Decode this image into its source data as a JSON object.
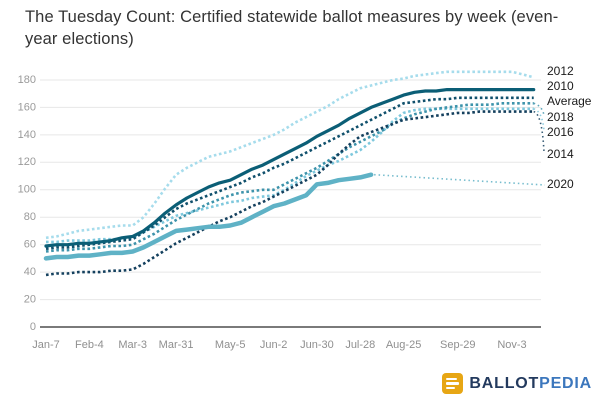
{
  "page": {
    "title": "The Tuesday Count: Certified statewide ballot measures by week (even-year elections)"
  },
  "logo": {
    "ballot": "BALLOT",
    "pedia": "PEDIA",
    "icon_color": "#e7a614"
  },
  "chart_data": {
    "type": "line",
    "title": "The Tuesday Count: Certified statewide ballot measures by week (even-year elections)",
    "xlabel": "",
    "ylabel": "",
    "ylim": [
      0,
      190
    ],
    "y_ticks": [
      0,
      20,
      40,
      60,
      80,
      100,
      120,
      140,
      160,
      180
    ],
    "grid": true,
    "legend_position": "right-of-line-ends",
    "x": [
      "Jan-7",
      "Jan-14",
      "Jan-21",
      "Jan-28",
      "Feb-4",
      "Feb-11",
      "Feb-18",
      "Feb-25",
      "Mar-3",
      "Mar-10",
      "Mar-17",
      "Mar-24",
      "Mar-31",
      "Apr-7",
      "Apr-14",
      "Apr-21",
      "Apr-28",
      "May-5",
      "May-12",
      "May-19",
      "May-26",
      "Jun-2",
      "Jun-9",
      "Jun-16",
      "Jun-23",
      "Jun-30",
      "Jul-7",
      "Jul-14",
      "Jul-21",
      "Jul-28",
      "Aug-4",
      "Aug-11",
      "Aug-18",
      "Aug-25",
      "Sep-1",
      "Sep-8",
      "Sep-15",
      "Sep-22",
      "Sep-29",
      "Oct-6",
      "Oct-13",
      "Oct-20",
      "Oct-27",
      "Nov-3",
      "Nov-10",
      "Nov-17"
    ],
    "x_axis_ticks": [
      "Jan-7",
      "Feb-4",
      "Mar-3",
      "Mar-31",
      "May-5",
      "Jun-2",
      "Jun-30",
      "Jul-28",
      "Aug-25",
      "Sep-29",
      "Nov-3"
    ],
    "series": [
      {
        "name": "2012",
        "color": "#a6dcec",
        "style": "dotted",
        "width": 2.6,
        "label_y": 72,
        "connector": false,
        "values": [
          65,
          66,
          68,
          70,
          71,
          72,
          73,
          74,
          74,
          80,
          90,
          101,
          111,
          116,
          120,
          124,
          126,
          128,
          131,
          134,
          137,
          140,
          144,
          149,
          153,
          157,
          161,
          166,
          170,
          174,
          176,
          178,
          180,
          181,
          183,
          184,
          185,
          186,
          186,
          186,
          186,
          186,
          186,
          186,
          184,
          182
        ]
      },
      {
        "name": "2016",
        "color": "#7ec8dd",
        "style": "dotted",
        "width": 2.6,
        "label_y": 133,
        "connector": true,
        "values": [
          62,
          62,
          63,
          63,
          63,
          64,
          64,
          64,
          65,
          69,
          73,
          77,
          81,
          83,
          85,
          87,
          89,
          91,
          92,
          94,
          95,
          96,
          100,
          105,
          110,
          114,
          118,
          121,
          125,
          129,
          135,
          142,
          150,
          156,
          158,
          159,
          159,
          159,
          159,
          159,
          159,
          159,
          159,
          159,
          159,
          159
        ]
      },
      {
        "name": "2018",
        "color": "#3d93ab",
        "style": "dotted",
        "width": 2.6,
        "label_y": 118,
        "connector": true,
        "values": [
          55,
          56,
          56,
          57,
          57,
          58,
          59,
          59,
          60,
          64,
          68,
          73,
          78,
          82,
          86,
          90,
          93,
          96,
          98,
          99,
          100,
          100,
          104,
          108,
          112,
          116,
          121,
          126,
          131,
          135,
          139,
          143,
          148,
          152,
          155,
          157,
          159,
          160,
          161,
          162,
          162,
          162,
          163,
          163,
          163,
          163
        ]
      },
      {
        "name": "2014",
        "color": "#14405e",
        "style": "dotted",
        "width": 2.6,
        "label_y": 155,
        "connector": true,
        "values": [
          38,
          39,
          39,
          40,
          40,
          40,
          41,
          41,
          42,
          46,
          51,
          56,
          61,
          65,
          69,
          73,
          77,
          80,
          84,
          88,
          91,
          95,
          99,
          103,
          107,
          111,
          118,
          126,
          133,
          139,
          142,
          145,
          148,
          151,
          152,
          153,
          154,
          155,
          156,
          156,
          157,
          157,
          157,
          157,
          157,
          157
        ]
      },
      {
        "name": "Average",
        "color": "#10506c",
        "style": "dotted",
        "width": 2.6,
        "label_y": 102,
        "connector": false,
        "values": [
          57,
          58,
          58,
          59,
          60,
          61,
          62,
          63,
          64,
          69,
          74,
          80,
          86,
          90,
          93,
          96,
          99,
          102,
          105,
          109,
          112,
          116,
          119,
          123,
          127,
          131,
          135,
          139,
          143,
          147,
          151,
          155,
          159,
          163,
          164,
          165,
          166,
          166,
          167,
          167,
          167,
          167,
          167,
          167,
          167,
          167
        ]
      },
      {
        "name": "2010",
        "color": "#0b5e76",
        "style": "solid",
        "width": 3.2,
        "label_y": 87,
        "connector": false,
        "values": [
          59,
          60,
          60,
          61,
          61,
          62,
          63,
          65,
          66,
          70,
          76,
          83,
          89,
          94,
          98,
          102,
          105,
          107,
          111,
          115,
          118,
          122,
          126,
          130,
          134,
          139,
          143,
          147,
          152,
          156,
          160,
          163,
          166,
          169,
          171,
          172,
          172,
          173,
          173,
          173,
          173,
          173,
          173,
          173,
          173,
          173
        ]
      },
      {
        "name": "2020",
        "color": "#5fb2c6",
        "style": "solid",
        "width": 4.5,
        "label_y": 185,
        "connector": true,
        "values": [
          50,
          51,
          51,
          52,
          52,
          53,
          54,
          54,
          55,
          58,
          62,
          66,
          70,
          71,
          72,
          73,
          73,
          74,
          76,
          80,
          84,
          88,
          90,
          93,
          96,
          104,
          105,
          107,
          108,
          109,
          111,
          null,
          null,
          null,
          null,
          null,
          null,
          null,
          null,
          null,
          null,
          null,
          null,
          null,
          null,
          null
        ]
      }
    ],
    "axis_colors": {
      "grid": "#e7e7e7",
      "axis_line": "#2b2b2b",
      "tick_text": "#9a9a9a",
      "series_label_text": "#1a1a1a"
    }
  }
}
